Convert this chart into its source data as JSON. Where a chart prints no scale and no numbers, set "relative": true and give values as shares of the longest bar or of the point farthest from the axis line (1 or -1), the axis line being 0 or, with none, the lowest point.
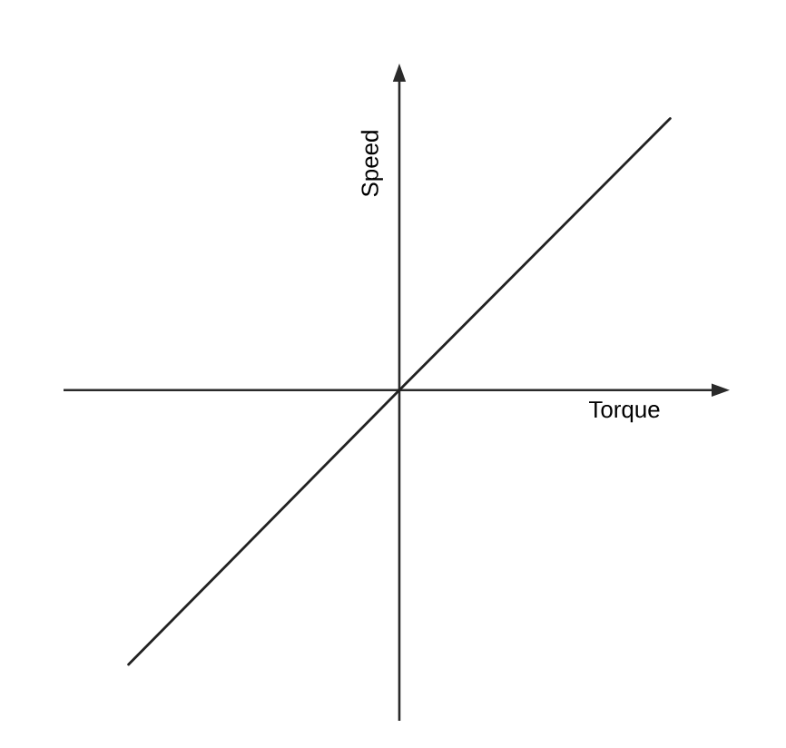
{
  "chart_data": {
    "type": "line",
    "xlabel": "Torque",
    "ylabel": "Speed",
    "categories": [
      null,
      null,
      null
    ],
    "values": [
      -1,
      0,
      0.99
    ],
    "color": "#222222",
    "relative": true
  }
}
